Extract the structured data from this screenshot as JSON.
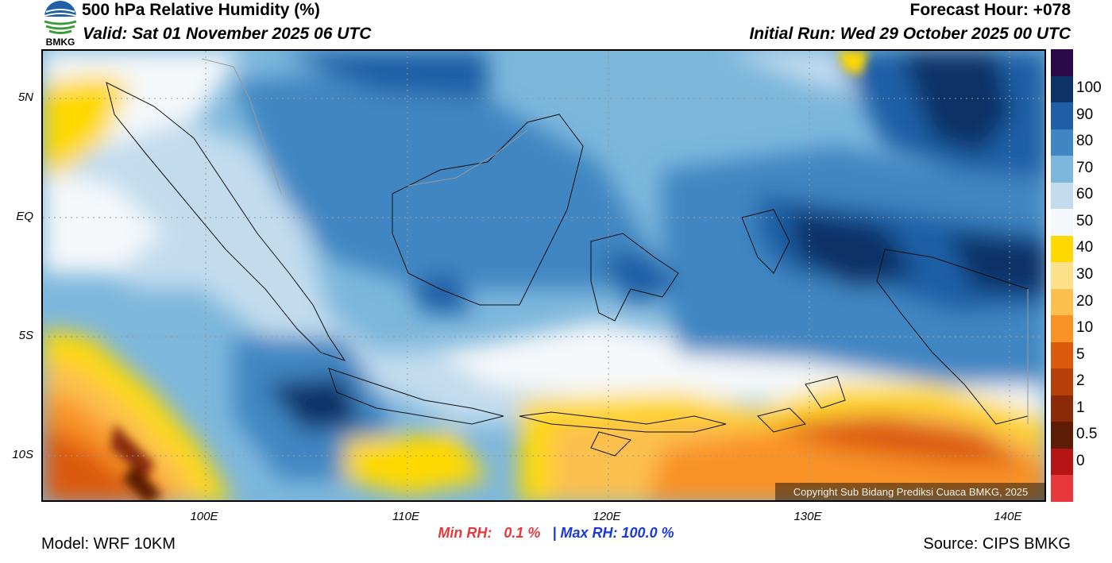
{
  "header": {
    "title": "500 hPa Relative Humidity (%)",
    "valid": "Valid: Sat 01 November 2025 06 UTC",
    "forecast_hour": "Forecast Hour: +078",
    "initial_run": "Initial Run: Wed 29 October 2025 00 UTC",
    "logo_text": "BMKG"
  },
  "axes": {
    "lat_labels": [
      "5N",
      "EQ",
      "5S",
      "10S"
    ],
    "lon_labels": [
      "100E",
      "110E",
      "120E",
      "130E",
      "140E"
    ]
  },
  "colorbar": {
    "labels": [
      "100",
      "90",
      "80",
      "70",
      "60",
      "50",
      "40",
      "30",
      "20",
      "10",
      "5",
      "2",
      "1",
      "0.5",
      "0"
    ],
    "colors": [
      "#2c0a4a",
      "#0d3366",
      "#1f5fa6",
      "#3f86c2",
      "#7db7dc",
      "#c2dcee",
      "#f5f8fa",
      "#ffd900",
      "#fde08a",
      "#fcc04f",
      "#f99225",
      "#db5a0c",
      "#b5400a",
      "#8a2a08",
      "#5c1c06",
      "#b51515",
      "#e8383b"
    ]
  },
  "stats": {
    "min_label": "Min RH:",
    "min_value": "0.1 %",
    "separator": "|",
    "max_label": "Max RH:",
    "max_value": "100.0 %"
  },
  "footer": {
    "model": "Model: WRF 10KM",
    "source": "Source: CIPS BMKG",
    "copyright": "Copyright Sub Bidang Prediksi Cuaca BMKG, 2025"
  }
}
